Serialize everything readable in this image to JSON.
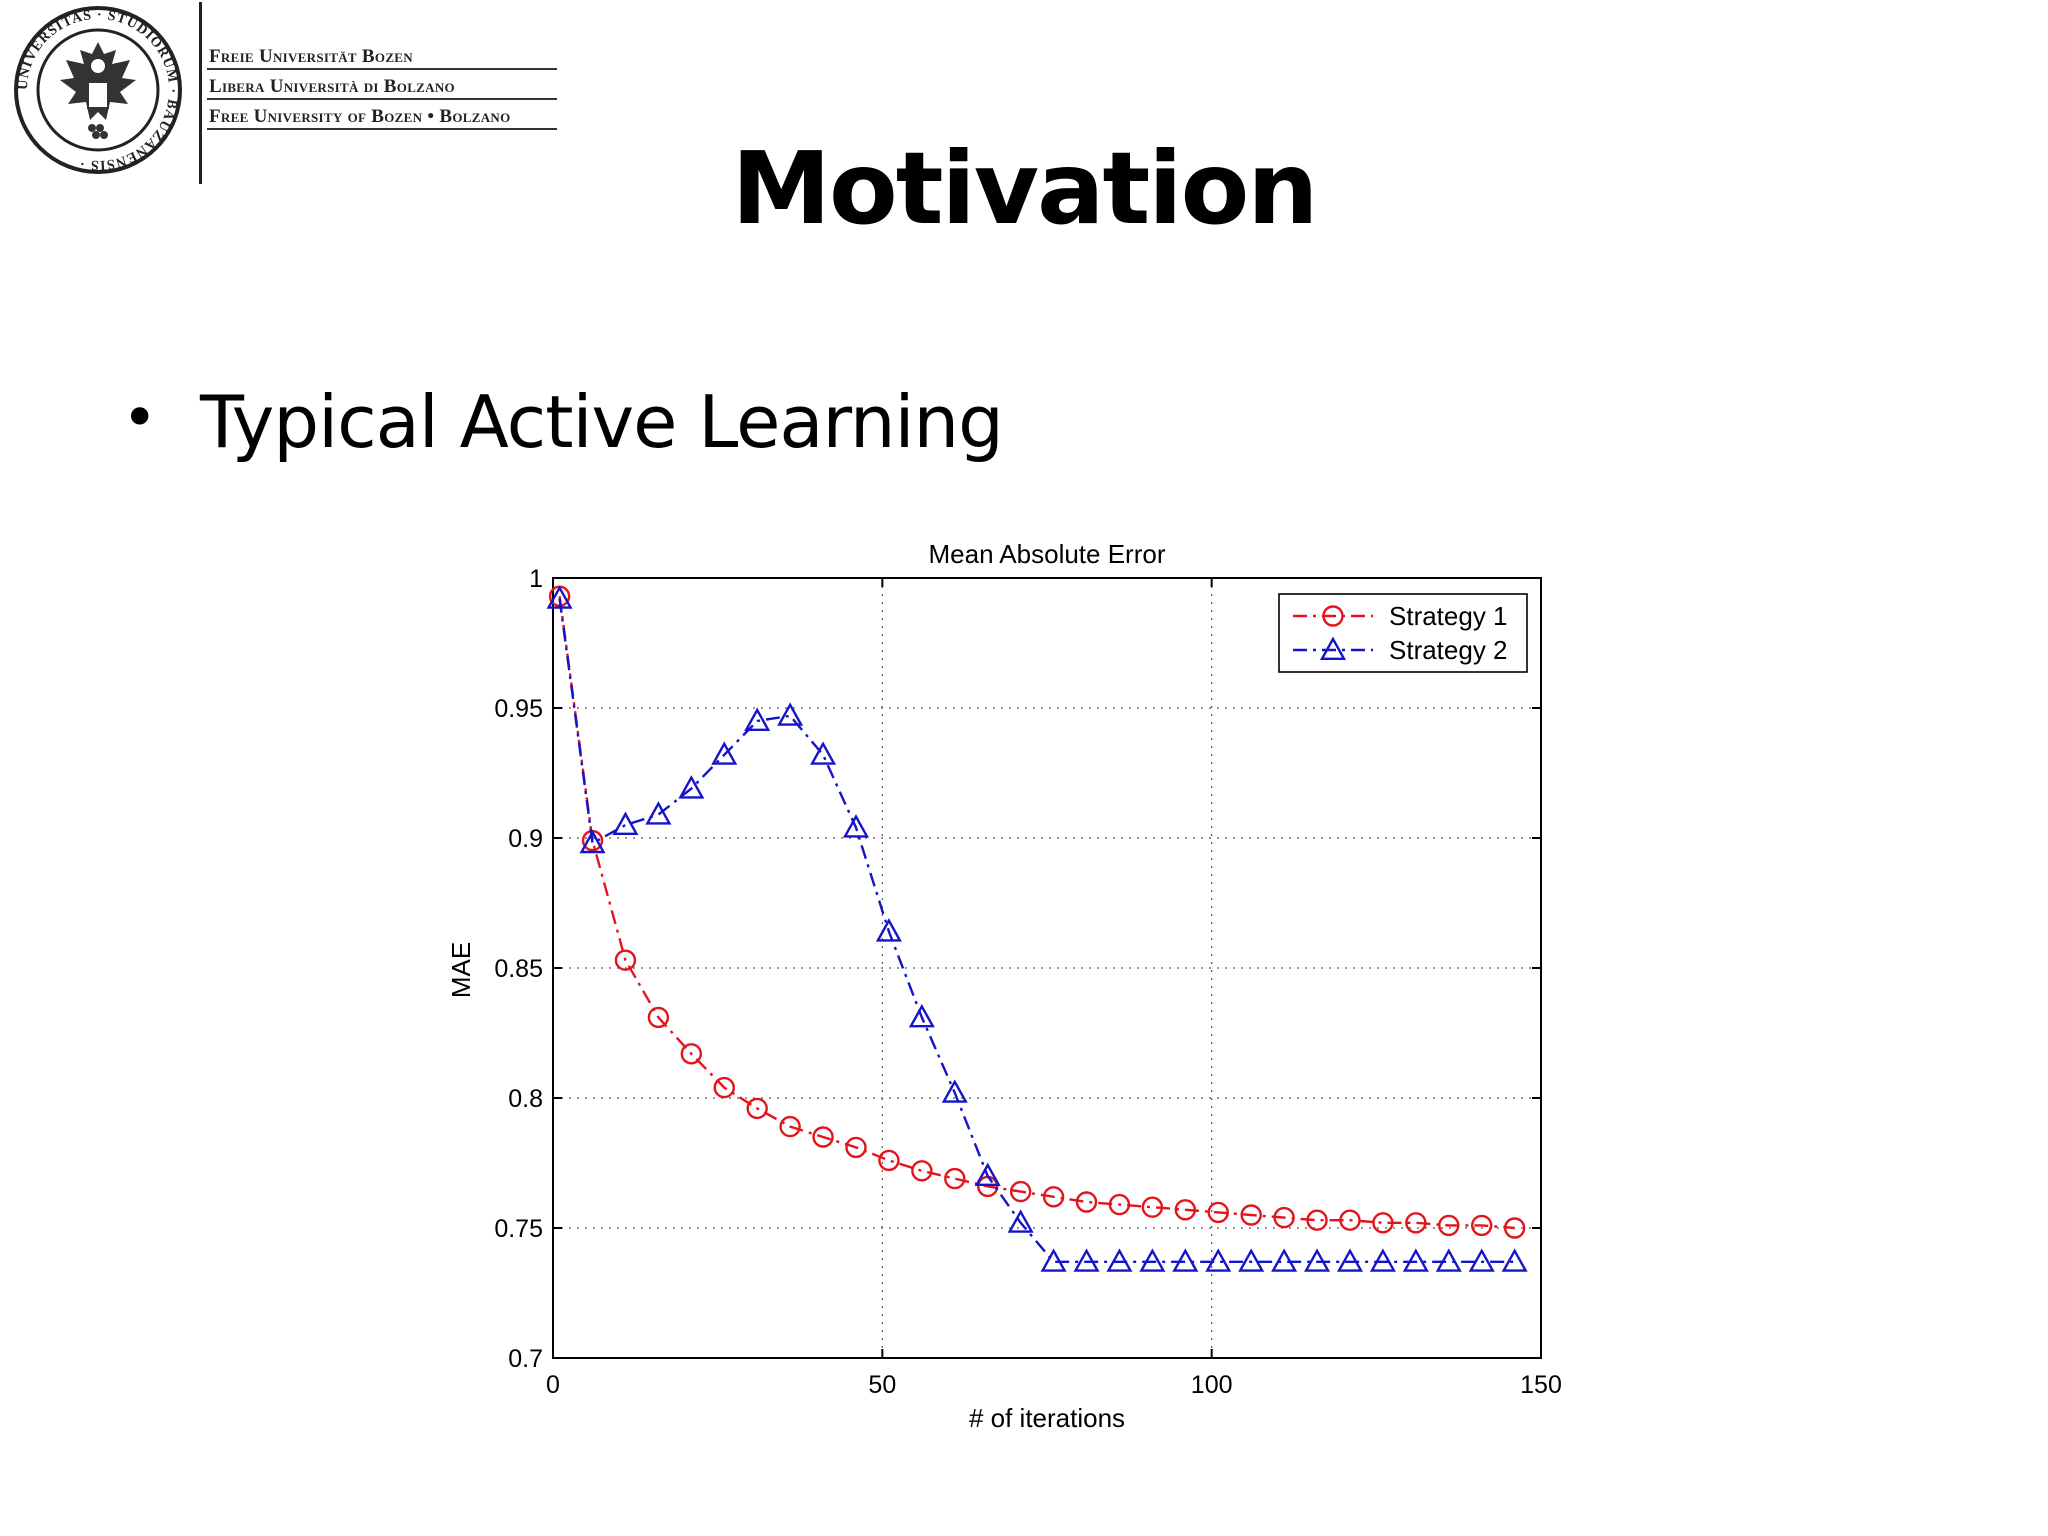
{
  "header": {
    "institution_lines": [
      "Freie Universität Bozen",
      "Libera Università di Bolzano",
      "Free University of Bozen  •  Bolzano"
    ],
    "seal_text": "UNIVERSITAS · STUDIORUM · BAUZANENSIS ·"
  },
  "slide": {
    "title": "Motivation",
    "bullet": "•",
    "bullet_text": "Typical Active Learning"
  },
  "chart_data": {
    "type": "line",
    "title": "Mean Absolute Error",
    "xlabel": "# of iterations",
    "ylabel": "MAE",
    "xlim": [
      0,
      150
    ],
    "ylim": [
      0.7,
      1
    ],
    "xticks": [
      0,
      50,
      100,
      150
    ],
    "yticks": [
      0.7,
      0.75,
      0.8,
      0.85,
      0.9,
      0.95,
      1
    ],
    "ytick_labels": [
      "0.7",
      "0.75",
      "0.8",
      "0.85",
      "0.9",
      "0.95",
      "1"
    ],
    "grid": true,
    "legend_position": "top-right",
    "series": [
      {
        "name": "Strategy 1",
        "color": "#e3141b",
        "marker": "circle",
        "line": "dash-dot",
        "x": [
          1,
          6,
          11,
          16,
          21,
          26,
          31,
          36,
          41,
          46,
          51,
          56,
          61,
          66,
          71,
          76,
          81,
          86,
          91,
          96,
          101,
          106,
          111,
          116,
          121,
          126,
          131,
          136,
          141,
          146
        ],
        "y": [
          0.993,
          0.899,
          0.853,
          0.831,
          0.817,
          0.804,
          0.796,
          0.789,
          0.785,
          0.781,
          0.776,
          0.772,
          0.769,
          0.766,
          0.764,
          0.762,
          0.76,
          0.759,
          0.758,
          0.757,
          0.756,
          0.755,
          0.754,
          0.753,
          0.753,
          0.752,
          0.752,
          0.751,
          0.751,
          0.75
        ]
      },
      {
        "name": "Strategy 2",
        "color": "#1414c8",
        "marker": "triangle",
        "line": "dash-dot",
        "x": [
          1,
          6,
          11,
          16,
          21,
          26,
          31,
          36,
          41,
          46,
          51,
          56,
          61,
          66,
          71,
          76,
          81,
          86,
          91,
          96,
          101,
          106,
          111,
          116,
          121,
          126,
          131,
          136,
          141,
          146
        ],
        "y": [
          0.992,
          0.898,
          0.905,
          0.909,
          0.919,
          0.932,
          0.945,
          0.947,
          0.932,
          0.904,
          0.864,
          0.831,
          0.802,
          0.77,
          0.752,
          0.737,
          0.737,
          0.737,
          0.737,
          0.737,
          0.737,
          0.737,
          0.737,
          0.737,
          0.737,
          0.737,
          0.737,
          0.737,
          0.737,
          0.737
        ]
      }
    ]
  }
}
